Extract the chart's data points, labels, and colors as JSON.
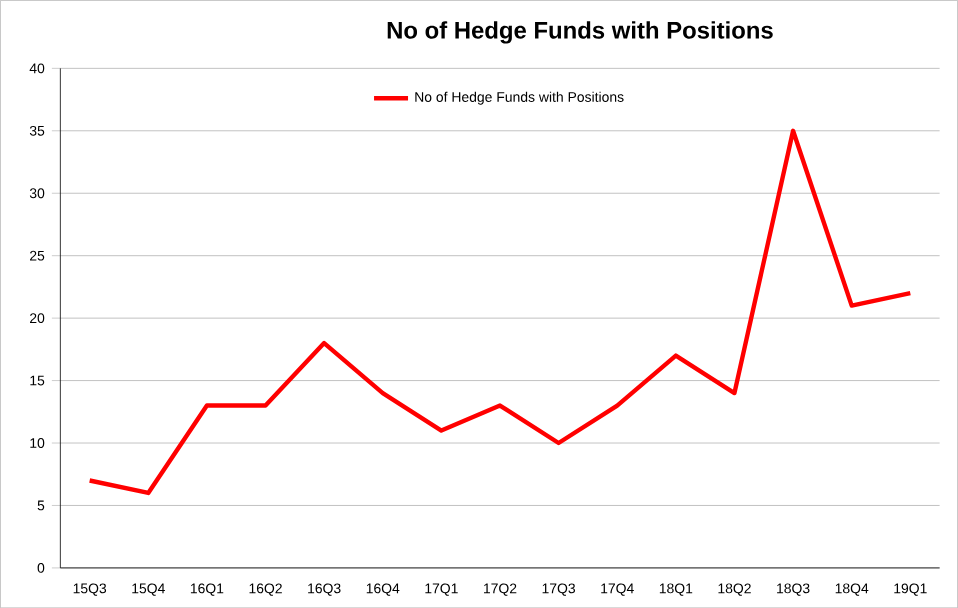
{
  "chart_data": {
    "type": "line",
    "title": "No of Hedge Funds with Positions",
    "categories": [
      "15Q3",
      "15Q4",
      "16Q1",
      "16Q2",
      "16Q3",
      "16Q4",
      "17Q1",
      "17Q2",
      "17Q3",
      "17Q4",
      "18Q1",
      "18Q2",
      "18Q3",
      "18Q4",
      "19Q1"
    ],
    "series": [
      {
        "name": "No of Hedge Funds with Positions",
        "color": "#ff0000",
        "values": [
          7,
          6,
          13,
          13,
          18,
          14,
          11,
          13,
          10,
          13,
          17,
          14,
          35,
          21,
          22
        ]
      }
    ],
    "ylim": [
      0,
      40
    ],
    "yticks": [
      0,
      5,
      10,
      15,
      20,
      25,
      30,
      35,
      40
    ],
    "grid": "y",
    "legend": "top",
    "marker": "none",
    "line_style": "solid"
  }
}
